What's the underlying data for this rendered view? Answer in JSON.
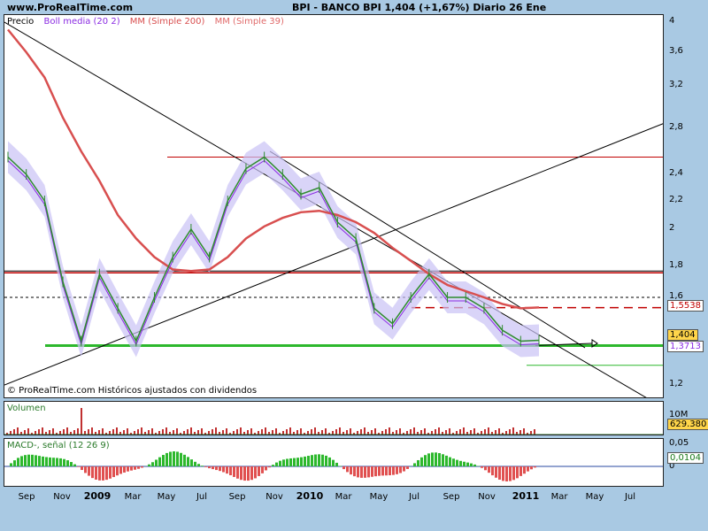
{
  "header": {
    "site": "www.ProRealTime.com",
    "title": "BPI - BANCO BPI    1,404 (+1,67%)   Diario  26 Ene"
  },
  "legend": {
    "price": "Precio",
    "boll": "Boll media (20 2)",
    "mm200": "MM (Simple 200)",
    "mm39": "MM (Simple 39)"
  },
  "credit": "© ProRealTime.com  Históricos ajustados con dividendos",
  "volume_label": "Volumen",
  "macd_label": "MACD-, señal (12 26 9)",
  "colors": {
    "price": "#2e8b2e",
    "boll_band": "#c9c2f5",
    "boll_mid": "#8a2be2",
    "mm200": "#d84f4f",
    "mm39": "#e06a6a",
    "support": "#2db82d",
    "resistance": "#c00000",
    "macd_pos": "#2db82d",
    "macd_neg": "#e05050"
  },
  "price_axis": {
    "ticks": [
      "4",
      "3,6",
      "3,2",
      "2,8",
      "2,4",
      "2,2",
      "2",
      "1,8",
      "1,6",
      "1,2"
    ],
    "tick_values": [
      4,
      3.6,
      3.2,
      2.8,
      2.4,
      2.2,
      2,
      1.8,
      1.6,
      1.2
    ]
  },
  "tags": {
    "last": "1,404",
    "mm200": "1,5538",
    "mm39": "1,3713",
    "volume": "629.380",
    "macd": "0,0104"
  },
  "volume_axis": {
    "ticks": [
      "10M"
    ]
  },
  "macd_axis": {
    "ticks": [
      "0,05",
      "0"
    ]
  },
  "xaxis": {
    "ticks": [
      "Sep",
      "Nov",
      "2009",
      "Mar",
      "May",
      "Jul",
      "Sep",
      "Nov",
      "2010",
      "Mar",
      "May",
      "Jul",
      "Sep",
      "Nov",
      "2011",
      "Mar",
      "May",
      "Jul"
    ],
    "bold": [
      false,
      false,
      true,
      false,
      false,
      false,
      false,
      false,
      true,
      false,
      false,
      false,
      false,
      false,
      true,
      false,
      false,
      false
    ]
  },
  "chart_data": {
    "type": "line",
    "title": "BPI - BANCO BPI",
    "ylim": [
      1.15,
      4.05
    ],
    "x": [
      "2008-08",
      "2008-09",
      "2008-10",
      "2008-11",
      "2008-12",
      "2009-01",
      "2009-02",
      "2009-03",
      "2009-04",
      "2009-05",
      "2009-06",
      "2009-07",
      "2009-08",
      "2009-09",
      "2009-10",
      "2009-11",
      "2009-12",
      "2010-01",
      "2010-02",
      "2010-03",
      "2010-04",
      "2010-05",
      "2010-06",
      "2010-07",
      "2010-08",
      "2010-09",
      "2010-10",
      "2010-11",
      "2010-12",
      "2011-01"
    ],
    "series": [
      {
        "name": "Precio",
        "values": [
          2.55,
          2.4,
          2.2,
          1.7,
          1.4,
          1.75,
          1.55,
          1.4,
          1.6,
          1.85,
          2.0,
          1.85,
          2.2,
          2.45,
          2.55,
          2.4,
          2.25,
          2.3,
          2.05,
          1.95,
          1.55,
          1.48,
          1.6,
          1.75,
          1.6,
          1.6,
          1.55,
          1.45,
          1.4,
          1.404
        ]
      },
      {
        "name": "MM (Simple 200)",
        "values": [
          3.9,
          3.6,
          3.3,
          2.9,
          2.6,
          2.35,
          2.1,
          1.95,
          1.85,
          1.78,
          1.77,
          1.78,
          1.85,
          1.95,
          2.02,
          2.08,
          2.12,
          2.13,
          2.1,
          2.05,
          1.98,
          1.9,
          1.83,
          1.75,
          1.68,
          1.64,
          1.6,
          1.57,
          1.55,
          1.5538
        ]
      }
    ]
  }
}
